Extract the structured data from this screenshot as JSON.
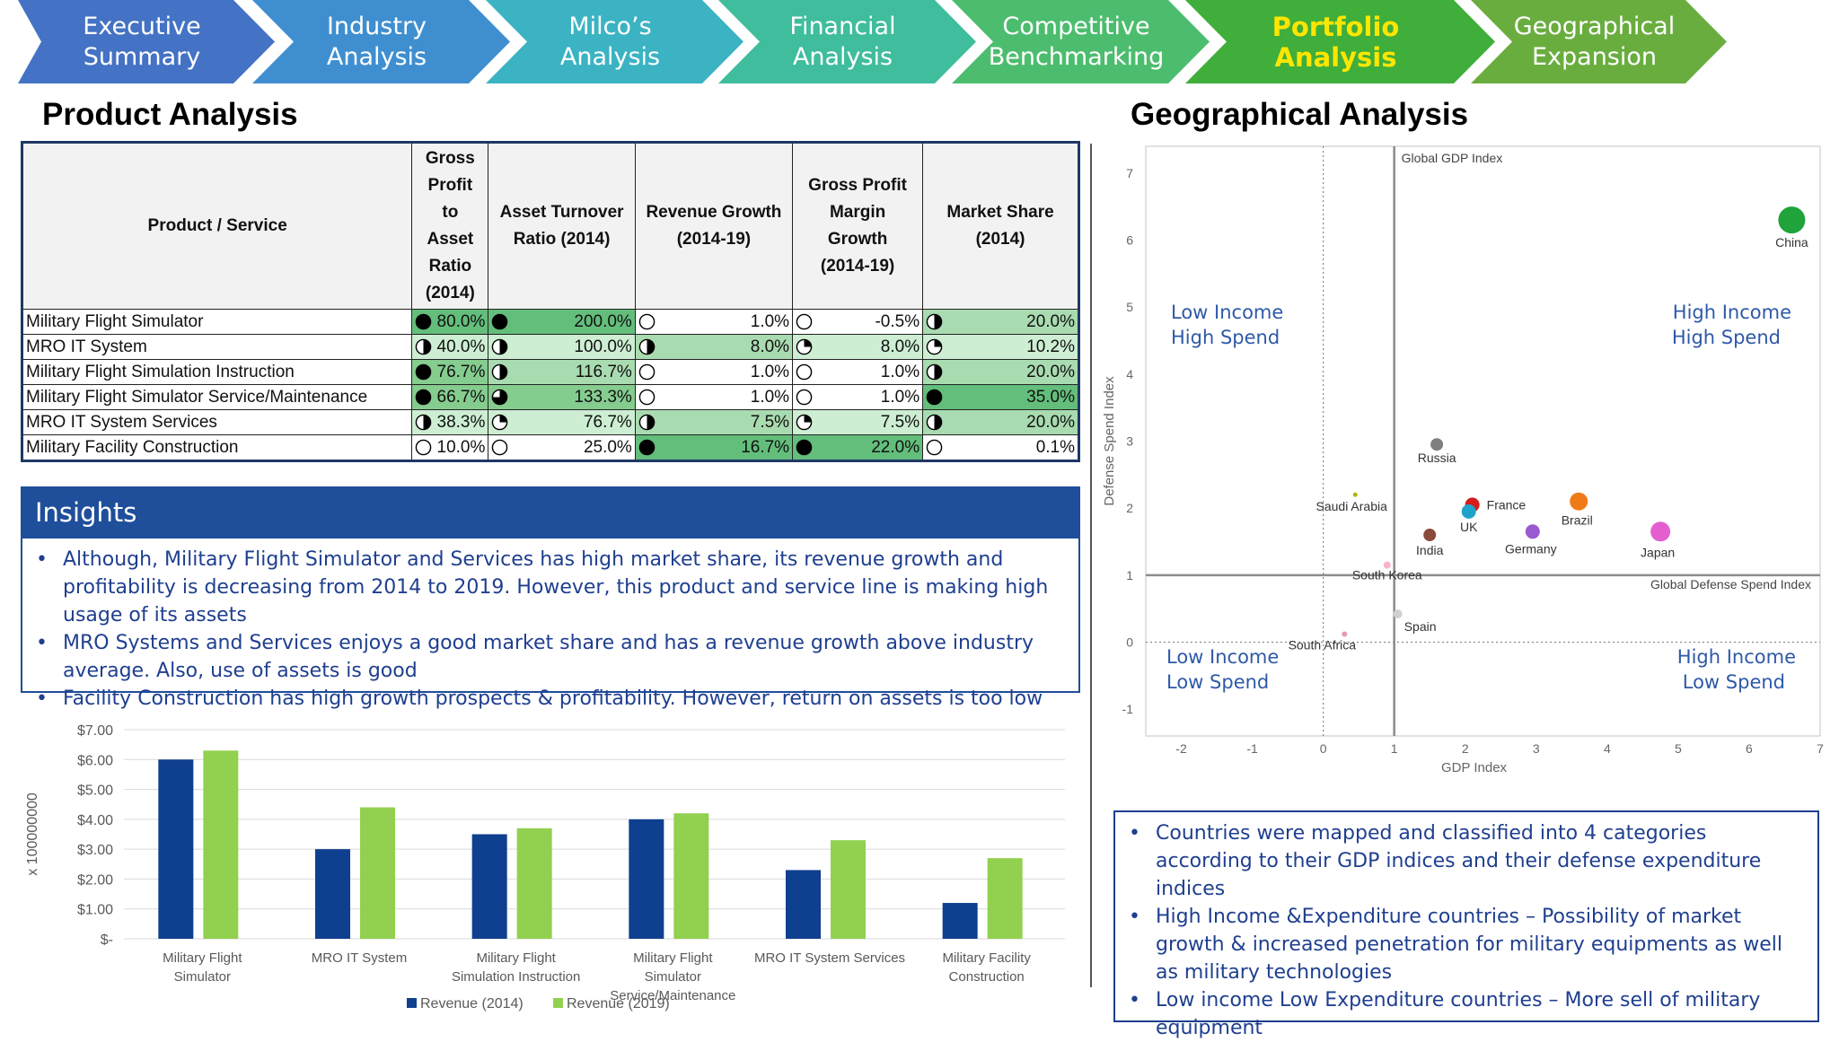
{
  "nav": [
    {
      "l1": "Executive",
      "l2": "Summary",
      "color": "#4472c4",
      "active": false
    },
    {
      "l1": "Industry",
      "l2": "Analysis",
      "color": "#3f8fd0",
      "active": false
    },
    {
      "l1": "Milco’s",
      "l2": "Analysis",
      "color": "#3bb3c2",
      "active": false
    },
    {
      "l1": "Financial",
      "l2": "Analysis",
      "color": "#3fbd9d",
      "active": false
    },
    {
      "l1": "Competitive",
      "l2": "Benchmarking",
      "color": "#4cbd6e",
      "active": false
    },
    {
      "l1": "Portfolio",
      "l2": "Analysis",
      "color": "#3fae3a",
      "active": true
    },
    {
      "l1": "Geographical",
      "l2": "Expansion",
      "color": "#6aad3f",
      "active": false
    }
  ],
  "product": {
    "title": "Product Analysis",
    "headers": [
      "Product / Service",
      "Gross Profit to Asset Ratio (2014)",
      "Asset Turnover Ratio (2014)",
      "Revenue Growth (2014-19)",
      "Gross Profit Margin Growth (2014-19)",
      "Market Share (2014)"
    ],
    "rows": [
      {
        "name": "Military Flight Simulator",
        "cells": [
          {
            "v": "80.0%",
            "b": "full",
            "g": "g1"
          },
          {
            "v": "200.0%",
            "b": "full",
            "g": "g1"
          },
          {
            "v": "1.0%",
            "b": "empty",
            "g": "g5"
          },
          {
            "v": "-0.5%",
            "b": "empty",
            "g": "g5"
          },
          {
            "v": "20.0%",
            "b": "half",
            "g": "g3"
          }
        ]
      },
      {
        "name": "MRO IT System",
        "cells": [
          {
            "v": "40.0%",
            "b": "half",
            "g": "g4"
          },
          {
            "v": "100.0%",
            "b": "half",
            "g": "g4"
          },
          {
            "v": "8.0%",
            "b": "half",
            "g": "g3"
          },
          {
            "v": "8.0%",
            "b": "quarter",
            "g": "g4"
          },
          {
            "v": "10.2%",
            "b": "quarter",
            "g": "g4"
          }
        ]
      },
      {
        "name": "Military Flight Simulation Instruction",
        "cells": [
          {
            "v": "76.7%",
            "b": "full",
            "g": "g2"
          },
          {
            "v": "116.7%",
            "b": "half",
            "g": "g3"
          },
          {
            "v": "1.0%",
            "b": "empty",
            "g": "g5"
          },
          {
            "v": "1.0%",
            "b": "empty",
            "g": "g5"
          },
          {
            "v": "20.0%",
            "b": "half",
            "g": "g3"
          }
        ]
      },
      {
        "name": "Military Flight Simulator Service/Maintenance",
        "cells": [
          {
            "v": "66.7%",
            "b": "full",
            "g": "g2"
          },
          {
            "v": "133.3%",
            "b": "threeq",
            "g": "g2"
          },
          {
            "v": "1.0%",
            "b": "empty",
            "g": "g5"
          },
          {
            "v": "1.0%",
            "b": "empty",
            "g": "g5"
          },
          {
            "v": "35.0%",
            "b": "full",
            "g": "g1"
          }
        ]
      },
      {
        "name": "MRO IT System Services",
        "cells": [
          {
            "v": "38.3%",
            "b": "half",
            "g": "g4"
          },
          {
            "v": "76.7%",
            "b": "quarter",
            "g": "g4"
          },
          {
            "v": "7.5%",
            "b": "half",
            "g": "g3"
          },
          {
            "v": "7.5%",
            "b": "quarter",
            "g": "g4"
          },
          {
            "v": "20.0%",
            "b": "half",
            "g": "g3"
          }
        ]
      },
      {
        "name": "Military Facility Construction",
        "cells": [
          {
            "v": "10.0%",
            "b": "empty",
            "g": "g5"
          },
          {
            "v": "25.0%",
            "b": "empty",
            "g": "g5"
          },
          {
            "v": "16.7%",
            "b": "full",
            "g": "g1"
          },
          {
            "v": "22.0%",
            "b": "full",
            "g": "g1"
          },
          {
            "v": "0.1%",
            "b": "empty",
            "g": "g5"
          }
        ]
      }
    ]
  },
  "insights": {
    "title": "Insights",
    "bullets": [
      "Although, Military Flight Simulator and Services has high market share, its revenue growth and profitability is decreasing from 2014 to 2019. However, this product and service line is making high usage of its assets",
      "MRO Systems and Services enjoys a good market share and has a revenue growth above industry average. Also, use of assets is good",
      "Facility Construction has high growth prospects & profitability. However, return on assets is too low"
    ]
  },
  "chart_data": [
    {
      "type": "bar",
      "categories": [
        "Military Flight Simulator",
        "MRO IT System",
        "Military Flight Simulation Instruction",
        "Military Flight Simulator Service/Maintenance",
        "MRO IT System Services",
        "Military Facility Construction"
      ],
      "series": [
        {
          "name": "Revenue (2014)",
          "color": "#0f3f8f",
          "values": [
            6.0,
            3.0,
            3.5,
            4.0,
            2.3,
            1.2
          ]
        },
        {
          "name": "Revenue (2019)",
          "color": "#92d050",
          "values": [
            6.3,
            4.4,
            3.7,
            4.2,
            3.3,
            2.7
          ]
        }
      ],
      "ylim": [
        0,
        7
      ],
      "yticks": [
        "$-",
        "$1.00",
        "$2.00",
        "$3.00",
        "$4.00",
        "$5.00",
        "$6.00",
        "$7.00"
      ],
      "ylabel": "x 100000000",
      "title": "",
      "legend": "bottom"
    },
    {
      "type": "scatter",
      "title": "",
      "xlabel": "GDP Index",
      "ylabel": "Defense Spend Index",
      "xlim": [
        -2.5,
        7
      ],
      "ylim": [
        -1.4,
        7.4
      ],
      "xticks": [
        -2,
        -1,
        0,
        1,
        2,
        3,
        4,
        5,
        6,
        7
      ],
      "yticks": [
        -1,
        0,
        1,
        2,
        3,
        4,
        5,
        6,
        7
      ],
      "divider_x": 1,
      "divider_y": 1,
      "dotted_x": 0,
      "dotted_y": 0,
      "line_labels": {
        "vertical": "Global GDP Index",
        "horizontal": "Global Defense Spend Index"
      },
      "quadrants": [
        {
          "l1": "Low Income",
          "l2": "High Spend",
          "pos": "top-left"
        },
        {
          "l1": "High Income",
          "l2": "High Spend",
          "pos": "top-right"
        },
        {
          "l1": "Low Income",
          "l2": "Low Spend",
          "pos": "bottom-left"
        },
        {
          "l1": "High Income",
          "l2": "Low Spend",
          "pos": "bottom-right"
        }
      ],
      "points": [
        {
          "name": "China",
          "x": 6.6,
          "y": 6.3,
          "r": 15,
          "color": "#1fa33a"
        },
        {
          "name": "Russia",
          "x": 1.6,
          "y": 2.95,
          "r": 7,
          "color": "#7f7f7f"
        },
        {
          "name": "Saudi Arabia",
          "x": 0.45,
          "y": 2.2,
          "r": 2.5,
          "color": "#b5b500"
        },
        {
          "name": "France",
          "x": 2.1,
          "y": 2.05,
          "r": 8,
          "color": "#d81b1b"
        },
        {
          "name": "UK",
          "x": 2.05,
          "y": 1.95,
          "r": 8,
          "color": "#1fa3c8"
        },
        {
          "name": "Brazil",
          "x": 3.6,
          "y": 2.1,
          "r": 10,
          "color": "#f07b16"
        },
        {
          "name": "India",
          "x": 1.5,
          "y": 1.6,
          "r": 7,
          "color": "#8b4a3a"
        },
        {
          "name": "Germany",
          "x": 2.95,
          "y": 1.65,
          "r": 8,
          "color": "#9b59d0"
        },
        {
          "name": "Japan",
          "x": 4.75,
          "y": 1.65,
          "r": 11,
          "color": "#e35fd0"
        },
        {
          "name": "South Korea",
          "x": 0.9,
          "y": 1.15,
          "r": 4,
          "color": "#f7b3c7"
        },
        {
          "name": "Spain",
          "x": 1.05,
          "y": 0.42,
          "r": 5,
          "color": "#d0d0d0"
        },
        {
          "name": "South Africa",
          "x": 0.3,
          "y": 0.12,
          "r": 3,
          "color": "#e79bb0"
        }
      ]
    }
  ],
  "geo": {
    "title": "Geographical Analysis",
    "bullets": [
      "Countries were mapped and classified into 4 categories according to their GDP indices and their defense expenditure indices",
      "High Income &Expenditure countries – Possibility of market growth & increased penetration for military equipments as well as military technologies",
      "Low income Low Expenditure countries – More sell of military equipment"
    ]
  }
}
